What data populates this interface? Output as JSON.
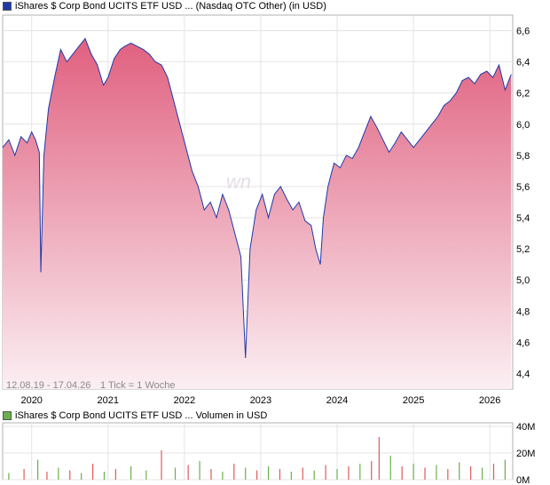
{
  "legend": {
    "price_label": "iShares $ Corp Bond UCITS ETF USD ... (Nasdaq OTC Other) (in USD)",
    "volume_label": "iShares $ Corp Bond UCITS ETF USD ... Volumen in USD",
    "price_color": "#1f3aa8",
    "volume_color": "#6ab04c"
  },
  "footer": {
    "range": "12.08.19 - 17.04.26",
    "tick": "1 Tick = 1 Woche"
  },
  "watermark": "wn",
  "chart_data": [
    {
      "type": "area",
      "title": "iShares $ Corp Bond UCITS ETF USD ... (Nasdaq OTC Other) (in USD)",
      "x_ticks": [
        "2020",
        "2021",
        "2022",
        "2023",
        "2024",
        "2025",
        "2026"
      ],
      "y_ticks": [
        "6,6",
        "6,4",
        "6,2",
        "6,0",
        "5,8",
        "5,6",
        "5,4",
        "5,2",
        "5,0",
        "4,8",
        "4,6",
        "4,4"
      ],
      "ylim": [
        4.3,
        6.7
      ],
      "xlim": [
        2019.62,
        2026.3
      ],
      "grid": true,
      "line_color": "#1f3aa8",
      "fill_top_color": "#e0607f",
      "fill_bottom_color": "#fbeff3",
      "x": [
        2019.62,
        2019.7,
        2019.78,
        2019.86,
        2019.94,
        2020.0,
        2020.05,
        2020.1,
        2020.12,
        2020.16,
        2020.22,
        2020.3,
        2020.38,
        2020.46,
        2020.54,
        2020.62,
        2020.7,
        2020.78,
        2020.86,
        2020.94,
        2021.0,
        2021.08,
        2021.16,
        2021.22,
        2021.3,
        2021.38,
        2021.46,
        2021.54,
        2021.62,
        2021.7,
        2021.78,
        2021.86,
        2021.94,
        2022.02,
        2022.1,
        2022.18,
        2022.26,
        2022.34,
        2022.42,
        2022.5,
        2022.58,
        2022.66,
        2022.74,
        2022.8,
        2022.86,
        2022.94,
        2023.02,
        2023.1,
        2023.18,
        2023.26,
        2023.34,
        2023.42,
        2023.5,
        2023.58,
        2023.66,
        2023.72,
        2023.78,
        2023.82,
        2023.88,
        2023.96,
        2024.04,
        2024.12,
        2024.2,
        2024.28,
        2024.36,
        2024.44,
        2024.52,
        2024.6,
        2024.68,
        2024.76,
        2024.84,
        2024.92,
        2025.0,
        2025.08,
        2025.16,
        2025.24,
        2025.32,
        2025.4,
        2025.48,
        2025.56,
        2025.64,
        2025.72,
        2025.8,
        2025.88,
        2025.96,
        2026.04,
        2026.12,
        2026.2,
        2026.28
      ],
      "y": [
        5.85,
        5.9,
        5.8,
        5.92,
        5.88,
        5.95,
        5.9,
        5.82,
        5.05,
        5.8,
        6.1,
        6.3,
        6.48,
        6.4,
        6.45,
        6.5,
        6.55,
        6.45,
        6.38,
        6.25,
        6.3,
        6.42,
        6.48,
        6.5,
        6.52,
        6.5,
        6.48,
        6.45,
        6.4,
        6.38,
        6.3,
        6.15,
        6.0,
        5.85,
        5.7,
        5.6,
        5.45,
        5.5,
        5.4,
        5.55,
        5.45,
        5.3,
        5.15,
        4.5,
        5.2,
        5.45,
        5.55,
        5.4,
        5.55,
        5.6,
        5.52,
        5.45,
        5.5,
        5.38,
        5.35,
        5.2,
        5.1,
        5.4,
        5.6,
        5.75,
        5.72,
        5.8,
        5.78,
        5.85,
        5.95,
        6.05,
        5.98,
        5.9,
        5.82,
        5.88,
        5.95,
        5.9,
        5.85,
        5.9,
        5.95,
        6.0,
        6.05,
        6.12,
        6.15,
        6.2,
        6.28,
        6.3,
        6.26,
        6.32,
        6.34,
        6.3,
        6.38,
        6.22,
        6.32
      ]
    },
    {
      "type": "bar",
      "title": "iShares $ Corp Bond UCITS ETF USD ... Volumen in USD",
      "y_ticks": [
        "40M",
        "20M",
        "0M"
      ],
      "ylim": [
        0,
        40000000
      ],
      "bar_color_up": "#6ab04c",
      "bar_color_down": "#e05a5a",
      "x": [
        2019.7,
        2019.9,
        2020.08,
        2020.2,
        2020.35,
        2020.5,
        2020.65,
        2020.8,
        2020.95,
        2021.1,
        2021.3,
        2021.5,
        2021.7,
        2021.88,
        2022.05,
        2022.2,
        2022.35,
        2022.5,
        2022.65,
        2022.8,
        2022.95,
        2023.1,
        2023.25,
        2023.4,
        2023.55,
        2023.7,
        2023.85,
        2024.0,
        2024.15,
        2024.3,
        2024.45,
        2024.55,
        2024.7,
        2024.85,
        2025.0,
        2025.15,
        2025.3,
        2025.45,
        2025.6,
        2025.75,
        2025.9,
        2026.05,
        2026.2
      ],
      "values": [
        5000000,
        8000000,
        15000000,
        6000000,
        9000000,
        7000000,
        5000000,
        12000000,
        6000000,
        8000000,
        10000000,
        7000000,
        22000000,
        9000000,
        11000000,
        14000000,
        8000000,
        6000000,
        12000000,
        9000000,
        7000000,
        10000000,
        8000000,
        6000000,
        9000000,
        7000000,
        11000000,
        8000000,
        10000000,
        12000000,
        14000000,
        32000000,
        18000000,
        10000000,
        12000000,
        9000000,
        11000000,
        8000000,
        13000000,
        10000000,
        9000000,
        12000000,
        15000000
      ],
      "directions": [
        "up",
        "down",
        "up",
        "down",
        "up",
        "down",
        "up",
        "down",
        "up",
        "down",
        "up",
        "up",
        "down",
        "up",
        "down",
        "up",
        "down",
        "up",
        "down",
        "up",
        "down",
        "up",
        "down",
        "up",
        "down",
        "up",
        "down",
        "up",
        "down",
        "up",
        "down",
        "down",
        "up",
        "down",
        "up",
        "down",
        "up",
        "down",
        "up",
        "down",
        "up",
        "down",
        "up"
      ]
    }
  ]
}
